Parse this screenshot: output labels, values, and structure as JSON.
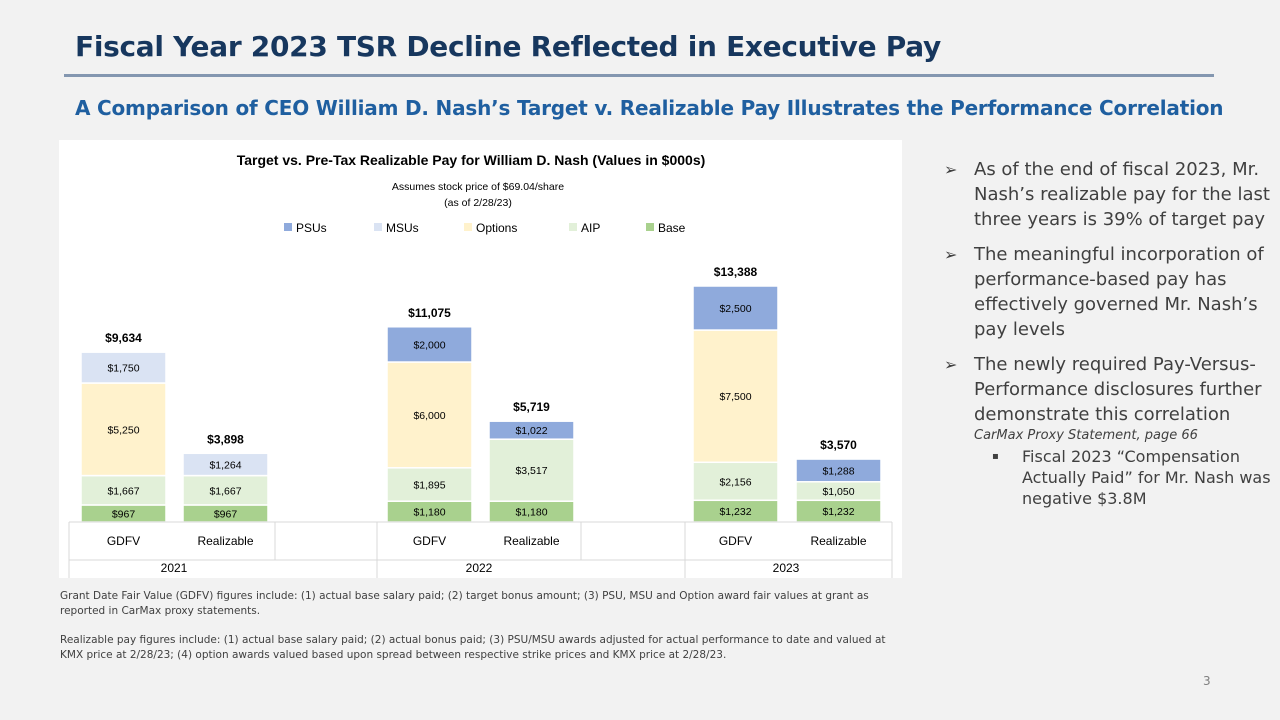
{
  "title": "Fiscal Year 2023 TSR Decline Reflected in Executive Pay",
  "subtitle": "A Comparison of CEO William D. Nash’s Target v. Realizable Pay Illustrates the Performance Correlation",
  "colors": {
    "PSUs": "#8faadc",
    "MSUs": "#dae3f3",
    "Options": "#fff2cc",
    "AIP": "#e2f0d9",
    "Base": "#a9d18e",
    "title": "#17375e",
    "subtitle": "#1f5fa0"
  },
  "chart_data": {
    "type": "bar",
    "stacked": true,
    "title": "Target vs. Pre-Tax Realizable Pay for William D. Nash (Values in $000s)",
    "note_line1": "Assumes stock price of $69.04/share",
    "note_line2": "(as of 2/28/23)",
    "legend": [
      "PSUs",
      "MSUs",
      "Options",
      "AIP",
      "Base"
    ],
    "groups": [
      "2021",
      "2022",
      "2023"
    ],
    "categories": [
      "GDFV",
      "Realizable",
      "GDFV",
      "Realizable",
      "GDFV",
      "Realizable"
    ],
    "ylim": [
      0,
      15000
    ],
    "bars": [
      {
        "group": "2021",
        "category": "GDFV",
        "total": "$9,634",
        "segments": [
          {
            "series": "Base",
            "value": 967,
            "label": "$967"
          },
          {
            "series": "AIP",
            "value": 1667,
            "label": "$1,667"
          },
          {
            "series": "Options",
            "value": 5250,
            "label": "$5,250"
          },
          {
            "series": "MSUs",
            "value": 1750,
            "label": "$1,750"
          }
        ]
      },
      {
        "group": "2021",
        "category": "Realizable",
        "total": "$3,898",
        "segments": [
          {
            "series": "Base",
            "value": 967,
            "label": "$967"
          },
          {
            "series": "AIP",
            "value": 1667,
            "label": "$1,667"
          },
          {
            "series": "MSUs",
            "value": 1264,
            "label": "$1,264"
          }
        ]
      },
      {
        "group": "2022",
        "category": "GDFV",
        "total": "$11,075",
        "segments": [
          {
            "series": "Base",
            "value": 1180,
            "label": "$1,180"
          },
          {
            "series": "AIP",
            "value": 1895,
            "label": "$1,895"
          },
          {
            "series": "Options",
            "value": 6000,
            "label": "$6,000"
          },
          {
            "series": "PSUs",
            "value": 2000,
            "label": "$2,000"
          }
        ]
      },
      {
        "group": "2022",
        "category": "Realizable",
        "total": "$5,719",
        "segments": [
          {
            "series": "Base",
            "value": 1180,
            "label": "$1,180"
          },
          {
            "series": "AIP",
            "value": 3517,
            "label": "$3,517"
          },
          {
            "series": "PSUs",
            "value": 1022,
            "label": "$1,022"
          }
        ]
      },
      {
        "group": "2023",
        "category": "GDFV",
        "total": "$13,388",
        "segments": [
          {
            "series": "Base",
            "value": 1232,
            "label": "$1,232"
          },
          {
            "series": "AIP",
            "value": 2156,
            "label": "$2,156"
          },
          {
            "series": "Options",
            "value": 7500,
            "label": "$7,500"
          },
          {
            "series": "PSUs",
            "value": 2500,
            "label": "$2,500"
          }
        ]
      },
      {
        "group": "2023",
        "category": "Realizable",
        "total": "$3,570",
        "segments": [
          {
            "series": "Base",
            "value": 1232,
            "label": "$1,232"
          },
          {
            "series": "AIP",
            "value": 1050,
            "label": "$1,050"
          },
          {
            "series": "PSUs",
            "value": 1288,
            "label": "$1,288"
          }
        ]
      }
    ]
  },
  "footnotes": {
    "gdfv": "Grant Date Fair Value (GDFV) figures include: (1) actual base salary paid; (2) target bonus amount; (3) PSU, MSU and Option award fair values at grant as reported in CarMax proxy statements.",
    "realizable": "Realizable pay figures include: (1) actual base salary paid; (2) actual bonus paid; (3) PSU/MSU awards adjusted for actual performance to date and valued at KMX price at 2/28/23; (4) option awards valued based upon spread between respective strike prices and KMX price at 2/28/23."
  },
  "bullets": [
    {
      "mark": "➢",
      "text": "As of the end of fiscal 2023, Mr. Nash’s realizable pay for the last three years is 39% of target pay"
    },
    {
      "mark": "➢",
      "text": "The meaningful incorporation of performance-based pay has effectively governed Mr. Nash’s pay levels"
    },
    {
      "mark": "➢",
      "text": "The newly required Pay-Versus-Performance disclosures further demonstrate this correlation"
    }
  ],
  "source_note": "CarMax Proxy Statement, page 66",
  "sub_bullet": {
    "mark": "▪",
    "text": "Fiscal 2023 “Compensation Actually Paid” for Mr. Nash was negative $3.8M"
  },
  "page_number": "3"
}
